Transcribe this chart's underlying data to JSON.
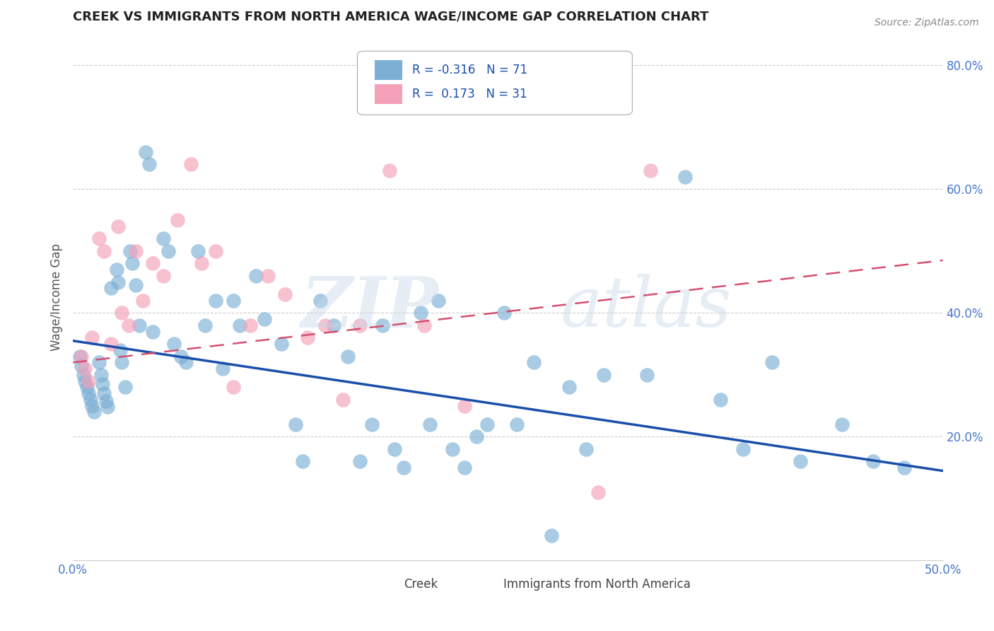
{
  "title": "CREEK VS IMMIGRANTS FROM NORTH AMERICA WAGE/INCOME GAP CORRELATION CHART",
  "source_text": "Source: ZipAtlas.com",
  "ylabel": "Wage/Income Gap",
  "xlim": [
    0.0,
    0.5
  ],
  "ylim": [
    0.0,
    0.85
  ],
  "xtick_labels": [
    "0.0%",
    "",
    "",
    "",
    "",
    "50.0%"
  ],
  "xtick_vals": [
    0.0,
    0.1,
    0.2,
    0.3,
    0.4,
    0.5
  ],
  "ytick_labels": [
    "20.0%",
    "40.0%",
    "60.0%",
    "80.0%"
  ],
  "ytick_vals": [
    0.2,
    0.4,
    0.6,
    0.8
  ],
  "creek_color": "#7bafd4",
  "creek_line_color": "#1a4faa",
  "immna_color": "#f4a0b8",
  "immna_line_color": "#d45070",
  "legend_box_color": "#f0f0f0",
  "tick_color": "#4477cc",
  "creek_x": [
    0.004,
    0.005,
    0.006,
    0.007,
    0.008,
    0.009,
    0.01,
    0.011,
    0.012,
    0.015,
    0.016,
    0.017,
    0.018,
    0.019,
    0.02,
    0.022,
    0.025,
    0.026,
    0.027,
    0.028,
    0.03,
    0.033,
    0.034,
    0.036,
    0.038,
    0.042,
    0.044,
    0.046,
    0.052,
    0.055,
    0.058,
    0.062,
    0.065,
    0.072,
    0.076,
    0.082,
    0.086,
    0.092,
    0.096,
    0.105,
    0.11,
    0.12,
    0.128,
    0.132,
    0.142,
    0.15,
    0.158,
    0.165,
    0.172,
    0.178,
    0.185,
    0.19,
    0.2,
    0.205,
    0.21,
    0.218,
    0.225,
    0.232,
    0.238,
    0.248,
    0.255,
    0.265,
    0.275,
    0.285,
    0.295,
    0.305,
    0.33,
    0.352,
    0.372,
    0.385,
    0.402,
    0.418,
    0.442,
    0.46,
    0.478
  ],
  "creek_y": [
    0.33,
    0.315,
    0.3,
    0.29,
    0.28,
    0.27,
    0.26,
    0.25,
    0.24,
    0.32,
    0.3,
    0.285,
    0.27,
    0.258,
    0.248,
    0.44,
    0.47,
    0.45,
    0.34,
    0.32,
    0.28,
    0.5,
    0.48,
    0.445,
    0.38,
    0.66,
    0.64,
    0.37,
    0.52,
    0.5,
    0.35,
    0.33,
    0.32,
    0.5,
    0.38,
    0.42,
    0.31,
    0.42,
    0.38,
    0.46,
    0.39,
    0.35,
    0.22,
    0.16,
    0.42,
    0.38,
    0.33,
    0.16,
    0.22,
    0.38,
    0.18,
    0.15,
    0.4,
    0.22,
    0.42,
    0.18,
    0.15,
    0.2,
    0.22,
    0.4,
    0.22,
    0.32,
    0.04,
    0.28,
    0.18,
    0.3,
    0.3,
    0.62,
    0.26,
    0.18,
    0.32,
    0.16,
    0.22,
    0.16,
    0.15
  ],
  "immna_x": [
    0.005,
    0.007,
    0.009,
    0.011,
    0.015,
    0.018,
    0.022,
    0.026,
    0.028,
    0.032,
    0.036,
    0.04,
    0.046,
    0.052,
    0.06,
    0.068,
    0.074,
    0.082,
    0.092,
    0.102,
    0.112,
    0.122,
    0.135,
    0.145,
    0.155,
    0.165,
    0.182,
    0.202,
    0.225,
    0.302,
    0.332
  ],
  "immna_y": [
    0.33,
    0.31,
    0.29,
    0.36,
    0.52,
    0.5,
    0.35,
    0.54,
    0.4,
    0.38,
    0.5,
    0.42,
    0.48,
    0.46,
    0.55,
    0.64,
    0.48,
    0.5,
    0.28,
    0.38,
    0.46,
    0.43,
    0.36,
    0.38,
    0.26,
    0.38,
    0.63,
    0.38,
    0.25,
    0.11,
    0.63
  ],
  "blue_line_x0": 0.0,
  "blue_line_y0": 0.355,
  "blue_line_x1": 0.5,
  "blue_line_y1": 0.145,
  "pink_line_x0": 0.0,
  "pink_line_y0": 0.32,
  "pink_line_x1": 0.5,
  "pink_line_y1": 0.485
}
